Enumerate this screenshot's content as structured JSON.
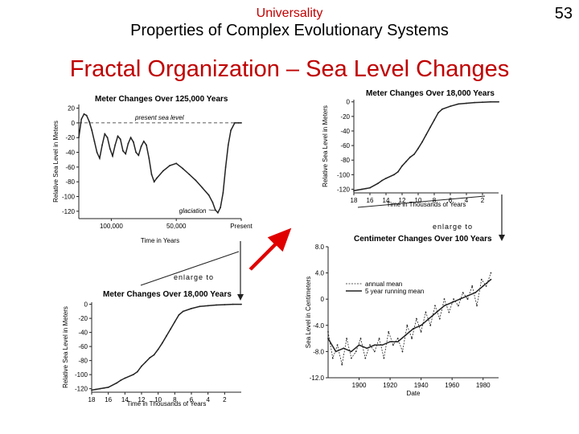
{
  "header": {
    "supertitle": "Universality",
    "subtitle": "Properties of Complex Evolutionary Systems",
    "page_number": "53",
    "heading": "Fractal Organization – Sea Level Changes"
  },
  "annotations": {
    "enlarge_to_1": "enlarge to",
    "enlarge_to_2": "enlarge to"
  },
  "colors": {
    "red": "#c00000",
    "arrow_fill": "#e00000",
    "arrow_edge": "#ffffff",
    "ink": "#222222"
  },
  "chart_data": [
    {
      "id": "p1",
      "type": "line",
      "title": "Meter Changes Over 125,000 Years",
      "xlabel": "Time in Years",
      "ylabel": "Relative Sea Level in Meters",
      "x_reversed": true,
      "xlim": [
        125000,
        0
      ],
      "ylim": [
        -130,
        25
      ],
      "yticks": [
        20,
        0,
        -20,
        -40,
        -60,
        -80,
        -100,
        -120
      ],
      "xticks": [
        {
          "v": 100000,
          "label": "100,000"
        },
        {
          "v": 50000,
          "label": "50,000"
        },
        {
          "v": 0,
          "label": "Present"
        }
      ],
      "reference_line": {
        "y": 0,
        "label": "present sea level"
      },
      "annotation": {
        "text": "glaciation",
        "x": 20000,
        "y": -118
      },
      "x": [
        125000,
        123000,
        121000,
        119000,
        117000,
        115000,
        113000,
        111000,
        109000,
        107000,
        105000,
        103000,
        101000,
        99000,
        97000,
        95000,
        93000,
        91000,
        89000,
        87000,
        85000,
        83000,
        81000,
        79000,
        77000,
        75000,
        73000,
        71000,
        69000,
        67000,
        65000,
        60000,
        55000,
        50000,
        45000,
        40000,
        35000,
        30000,
        25000,
        22000,
        20000,
        18000,
        16000,
        14000,
        12000,
        10000,
        8000,
        5000,
        2000,
        0
      ],
      "y": [
        -20,
        5,
        12,
        10,
        2,
        -10,
        -25,
        -40,
        -48,
        -30,
        -15,
        -20,
        -35,
        -45,
        -30,
        -18,
        -22,
        -38,
        -42,
        -28,
        -20,
        -26,
        -40,
        -44,
        -32,
        -25,
        -30,
        -48,
        -70,
        -80,
        -75,
        -65,
        -58,
        -55,
        -62,
        -70,
        -78,
        -88,
        -98,
        -108,
        -118,
        -122,
        -115,
        -95,
        -60,
        -30,
        -10,
        0,
        0,
        0
      ]
    },
    {
      "id": "p2",
      "type": "line",
      "title": "Meter Changes Over 18,000 Years",
      "xlabel": "Time in Thousands of Years",
      "ylabel": "Relative Sea Level in Meters",
      "x_reversed": true,
      "xlim": [
        18,
        0
      ],
      "ylim": [
        -125,
        3
      ],
      "yticks": [
        0,
        -20,
        -40,
        -60,
        -80,
        -100,
        -120
      ],
      "xticks": [
        18,
        16,
        14,
        12,
        10,
        8,
        6,
        4,
        2
      ],
      "x": [
        18,
        17.5,
        17,
        16.5,
        16,
        15,
        14.5,
        14,
        13,
        12.5,
        12,
        11.5,
        11,
        10.5,
        10,
        9.5,
        9,
        8.5,
        8,
        7.5,
        7,
        6,
        5,
        4,
        3,
        2,
        1,
        0
      ],
      "y": [
        -122,
        -121,
        -120,
        -119,
        -118,
        -112,
        -108,
        -105,
        -100,
        -96,
        -88,
        -82,
        -76,
        -72,
        -64,
        -55,
        -45,
        -35,
        -25,
        -15,
        -10,
        -6,
        -3,
        -2,
        -1,
        -0.5,
        0,
        0
      ]
    },
    {
      "id": "p3",
      "type": "line",
      "title": "Meter Changes Over 18,000 Years",
      "xlabel": "Time in Thousands of Years",
      "ylabel": "Relative Sea Level in Meters",
      "x_reversed": true,
      "xlim": [
        18,
        0
      ],
      "ylim": [
        -125,
        3
      ],
      "yticks": [
        0,
        -20,
        -40,
        -60,
        -80,
        -100,
        -120
      ],
      "xticks": [
        18,
        16,
        14,
        12,
        10,
        8,
        6,
        4,
        2
      ],
      "x": [
        18,
        17.5,
        17,
        16.5,
        16,
        15,
        14.5,
        14,
        13,
        12.5,
        12,
        11.5,
        11,
        10.5,
        10,
        9.5,
        9,
        8.5,
        8,
        7.5,
        7,
        6,
        5,
        4,
        3,
        2,
        1,
        0
      ],
      "y": [
        -122,
        -121,
        -120,
        -119,
        -118,
        -112,
        -108,
        -105,
        -100,
        -96,
        -88,
        -82,
        -76,
        -72,
        -64,
        -55,
        -45,
        -35,
        -25,
        -15,
        -10,
        -6,
        -3,
        -2,
        -1,
        -0.5,
        0,
        0
      ]
    },
    {
      "id": "p4",
      "type": "line",
      "title": "Centimeter Changes Over 100 Years",
      "xlabel": "Date",
      "ylabel": "Sea Level in Centimeters",
      "xlim": [
        1880,
        1990
      ],
      "ylim": [
        -12,
        8
      ],
      "yticks": [
        8.0,
        4.0,
        0,
        -4.0,
        -8.0,
        -12.0
      ],
      "ytick_labels": [
        "8.0",
        "4.0",
        "0",
        "-4.0",
        "-8.0",
        "-12.0"
      ],
      "xticks": [
        1900,
        1920,
        1940,
        1960,
        1980
      ],
      "legend": {
        "position": "top",
        "entries": [
          "annual mean",
          "5 year running mean"
        ]
      },
      "series": [
        {
          "name": "annual mean",
          "x": [
            1880,
            1883,
            1886,
            1889,
            1892,
            1895,
            1898,
            1901,
            1904,
            1907,
            1910,
            1913,
            1916,
            1919,
            1922,
            1925,
            1928,
            1931,
            1934,
            1937,
            1940,
            1943,
            1946,
            1949,
            1952,
            1955,
            1958,
            1961,
            1964,
            1967,
            1970,
            1973,
            1976,
            1979,
            1982,
            1985
          ],
          "y": [
            -5,
            -9,
            -7,
            -10,
            -6,
            -9,
            -8,
            -6,
            -9,
            -7,
            -8,
            -6,
            -9,
            -5,
            -7,
            -6,
            -8,
            -4,
            -6,
            -3,
            -5,
            -2,
            -4,
            -1,
            -3,
            0,
            -2,
            0,
            -1,
            1,
            0,
            2,
            -1,
            3,
            2,
            4
          ]
        },
        {
          "name": "5 year running mean",
          "x": [
            1880,
            1885,
            1890,
            1895,
            1900,
            1905,
            1910,
            1915,
            1920,
            1925,
            1930,
            1935,
            1940,
            1945,
            1950,
            1955,
            1960,
            1965,
            1970,
            1975,
            1980,
            1985
          ],
          "y": [
            -6,
            -8,
            -7.5,
            -8,
            -7,
            -7.5,
            -7,
            -7,
            -6.5,
            -6.5,
            -5.5,
            -4.5,
            -4,
            -3,
            -2,
            -1,
            -0.5,
            0,
            0.5,
            1,
            2,
            3
          ]
        }
      ]
    }
  ]
}
